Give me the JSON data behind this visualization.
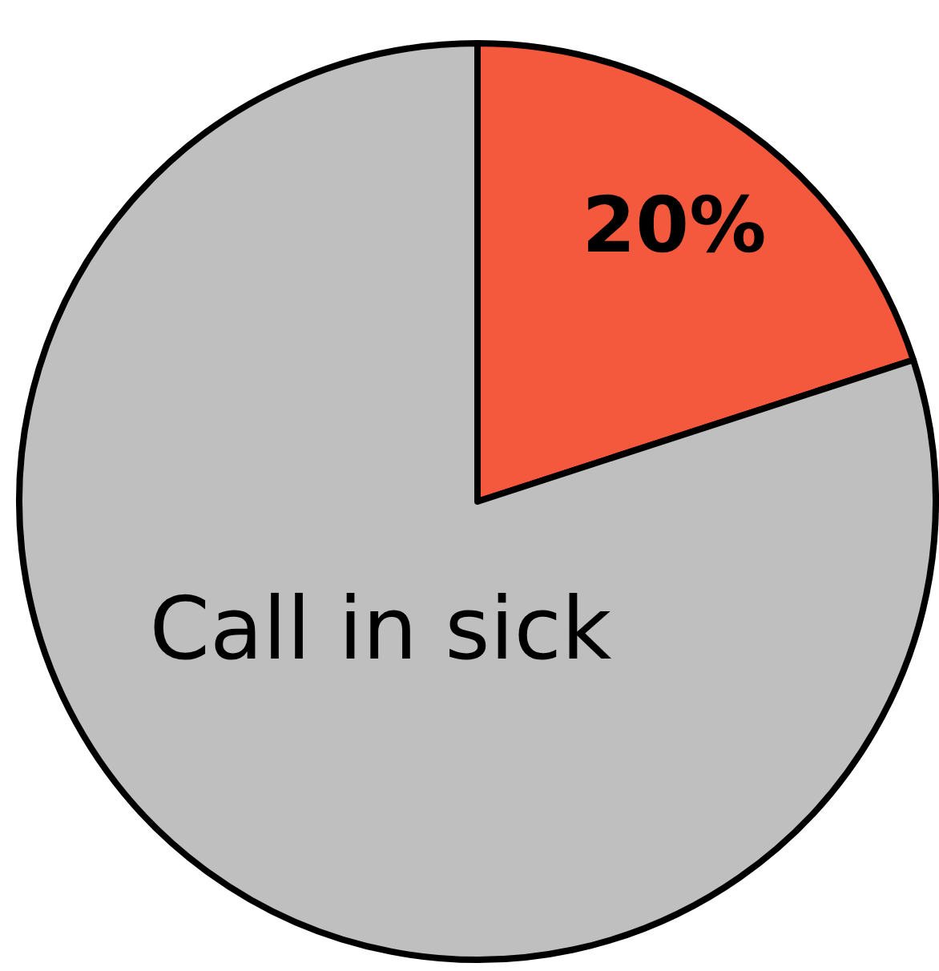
{
  "chart_data": {
    "type": "pie",
    "categories": [
      null,
      "Call in sick"
    ],
    "values": [
      20,
      80
    ],
    "colors": [
      "#f5593d",
      "#bfbfbf"
    ],
    "value_labels": [
      "20%",
      null
    ]
  }
}
